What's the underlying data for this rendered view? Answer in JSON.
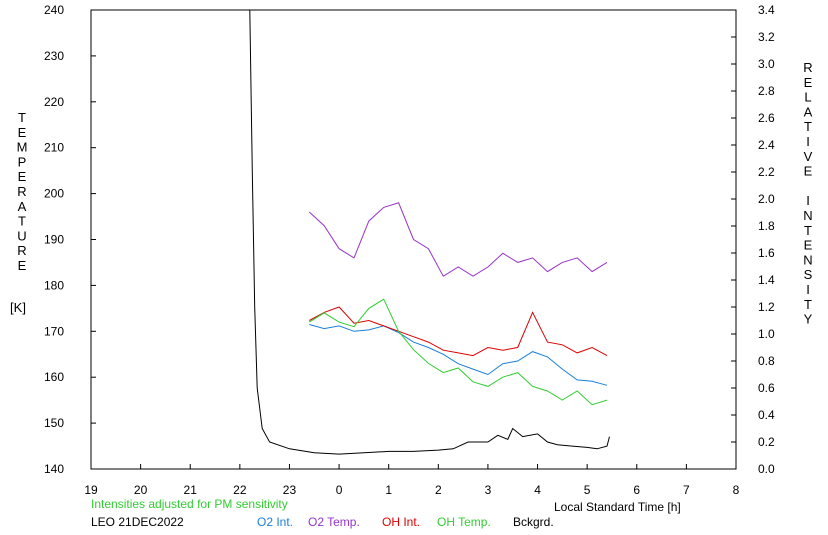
{
  "chart_data": {
    "type": "line",
    "left_axis": {
      "label": "TEMPERATURE",
      "unit": "[K]",
      "ylim": [
        140,
        240
      ],
      "ticks": [
        "140",
        "150",
        "160",
        "170",
        "180",
        "190",
        "200",
        "210",
        "220",
        "230",
        "240"
      ]
    },
    "right_axis": {
      "label": "RELATIVE INTENSITY",
      "ylim": [
        0.0,
        3.4
      ],
      "ticks": [
        "0.0",
        "0.2",
        "0.4",
        "0.6",
        "0.8",
        "1.0",
        "1.2",
        "1.4",
        "1.6",
        "1.8",
        "2.0",
        "2.2",
        "2.4",
        "2.6",
        "2.8",
        "3.0",
        "3.2",
        "3.4"
      ]
    },
    "x_axis": {
      "label": "Local Standard Time [h]",
      "xlim": [
        19,
        32
      ],
      "ticks": [
        "19",
        "20",
        "21",
        "22",
        "23",
        "0",
        "1",
        "2",
        "3",
        "4",
        "5",
        "6",
        "7",
        "8"
      ]
    },
    "note": "Intensities adjusted for PM sensitivity",
    "station": "LEO 21DEC2022",
    "grid": false,
    "series": [
      {
        "name": "O2 Int.",
        "axis": "right",
        "color": "#1a7fd9",
        "x": [
          23.4,
          23.7,
          24.0,
          24.3,
          24.6,
          24.9,
          25.2,
          25.5,
          25.8,
          26.1,
          26.4,
          26.7,
          27.0,
          27.3,
          27.6,
          27.9,
          28.2,
          28.5,
          28.8,
          29.1,
          29.4
        ],
        "y": [
          1.07,
          1.04,
          1.06,
          1.02,
          1.03,
          1.06,
          1.01,
          0.94,
          0.9,
          0.85,
          0.78,
          0.74,
          0.7,
          0.78,
          0.8,
          0.87,
          0.83,
          0.74,
          0.66,
          0.65,
          0.62
        ]
      },
      {
        "name": "O2 Temp.",
        "axis": "left",
        "color": "#9933cc",
        "x": [
          23.4,
          23.7,
          24.0,
          24.3,
          24.6,
          24.9,
          25.2,
          25.5,
          25.8,
          26.1,
          26.4,
          26.7,
          27.0,
          27.3,
          27.6,
          27.9,
          28.2,
          28.5,
          28.8,
          29.1,
          29.4
        ],
        "y": [
          196,
          193,
          188,
          186,
          194,
          197,
          198,
          190,
          188,
          182,
          184,
          182,
          184,
          187,
          185,
          186,
          183,
          185,
          186,
          183,
          185
        ]
      },
      {
        "name": "OH Int.",
        "axis": "right",
        "color": "#dd0000",
        "x": [
          23.4,
          23.7,
          24.0,
          24.3,
          24.6,
          24.9,
          25.2,
          25.5,
          25.8,
          26.1,
          26.4,
          26.7,
          27.0,
          27.3,
          27.6,
          27.9,
          28.2,
          28.5,
          28.8,
          29.1,
          29.4
        ],
        "y": [
          1.1,
          1.16,
          1.2,
          1.08,
          1.1,
          1.06,
          1.02,
          0.98,
          0.94,
          0.88,
          0.86,
          0.84,
          0.9,
          0.88,
          0.9,
          1.16,
          0.94,
          0.92,
          0.86,
          0.9,
          0.84
        ]
      },
      {
        "name": "OH Temp.",
        "axis": "left",
        "color": "#33cc33",
        "x": [
          23.4,
          23.7,
          24.0,
          24.3,
          24.6,
          24.9,
          25.2,
          25.5,
          25.8,
          26.1,
          26.4,
          26.7,
          27.0,
          27.3,
          27.6,
          27.9,
          28.2,
          28.5,
          28.8,
          29.1,
          29.4
        ],
        "y": [
          172,
          174,
          172,
          171,
          175,
          177,
          170,
          166,
          163,
          161,
          162,
          159,
          158,
          160,
          161,
          158,
          157,
          155,
          157,
          154,
          155
        ]
      },
      {
        "name": "Bckgrd.",
        "axis": "right",
        "color": "#000000",
        "x": [
          22.2,
          22.25,
          22.3,
          22.35,
          22.45,
          22.6,
          23.0,
          23.5,
          24.0,
          24.5,
          25.0,
          25.5,
          26.0,
          26.3,
          26.6,
          27.0,
          27.2,
          27.4,
          27.5,
          27.7,
          28.0,
          28.2,
          28.4,
          28.7,
          29.0,
          29.2,
          29.4,
          29.45
        ],
        "y": [
          3.4,
          2.2,
          1.2,
          0.6,
          0.3,
          0.2,
          0.15,
          0.12,
          0.11,
          0.12,
          0.13,
          0.13,
          0.14,
          0.15,
          0.2,
          0.2,
          0.25,
          0.22,
          0.3,
          0.24,
          0.26,
          0.2,
          0.18,
          0.17,
          0.16,
          0.15,
          0.17,
          0.24
        ]
      }
    ]
  }
}
